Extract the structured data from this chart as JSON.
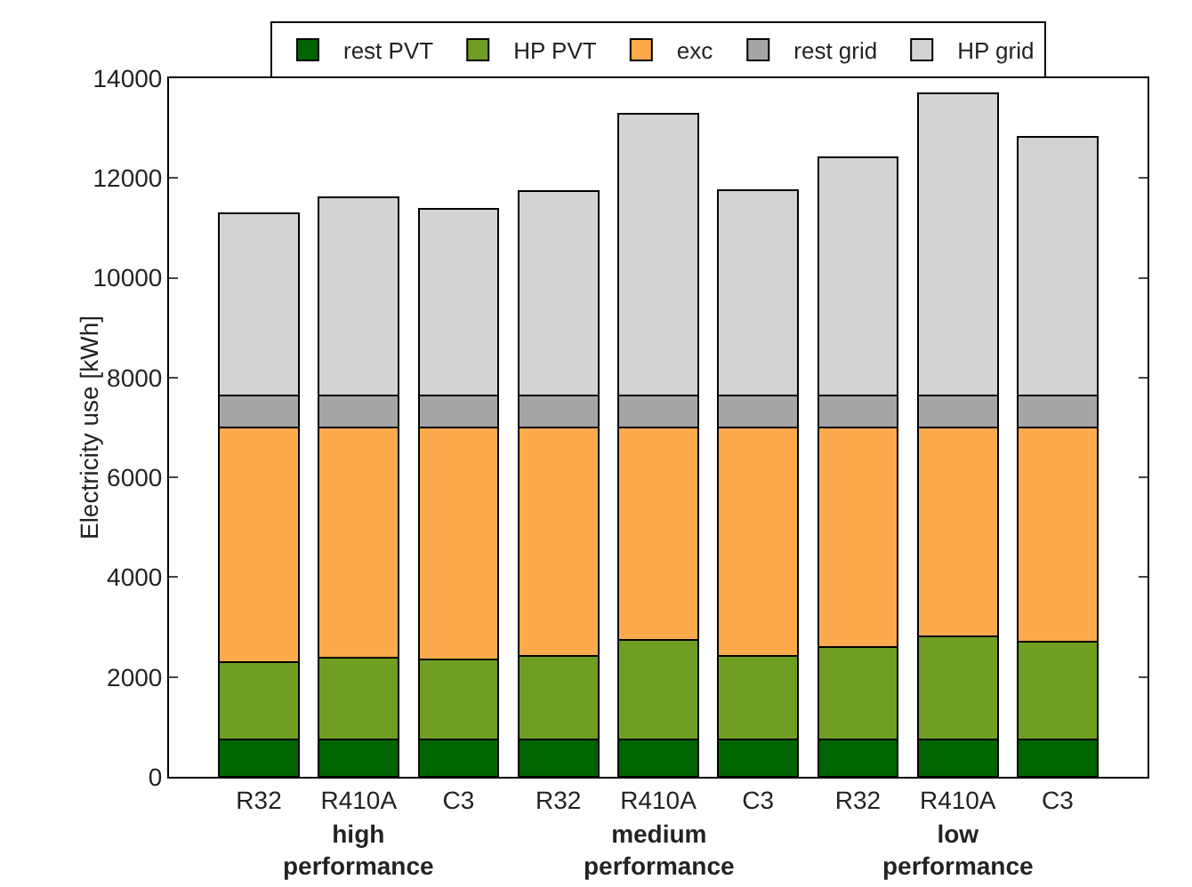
{
  "chart_data": {
    "type": "bar",
    "stacked": true,
    "ylabel": "Electricity use [kWh]",
    "categories": [
      "R32",
      "R410A",
      "C3",
      "R32",
      "R410A",
      "C3",
      "R32",
      "R410A",
      "C3"
    ],
    "series": [
      {
        "name": "rest PVT",
        "color": "#006400",
        "values": [
          750,
          750,
          750,
          750,
          750,
          750,
          750,
          750,
          750
        ]
      },
      {
        "name": "HP PVT",
        "color": "#6f9e22",
        "values": [
          1550,
          1630,
          1600,
          1670,
          2000,
          1670,
          1850,
          2070,
          1950
        ]
      },
      {
        "name": "exc",
        "color": "#fdaa4c",
        "values": [
          4700,
          4620,
          4650,
          4580,
          4250,
          4580,
          4400,
          4180,
          4300
        ]
      },
      {
        "name": "rest grid",
        "color": "#a5a5a5",
        "values": [
          650,
          650,
          650,
          650,
          650,
          650,
          650,
          650,
          650
        ]
      },
      {
        "name": "HP grid",
        "color": "#d3d3d3",
        "values": [
          3650,
          3970,
          3730,
          4080,
          5630,
          4110,
          4770,
          6050,
          5170
        ]
      }
    ],
    "ylim": [
      0,
      14000
    ],
    "yticks": [
      0,
      2000,
      4000,
      6000,
      8000,
      10000,
      12000,
      14000
    ],
    "grid": false,
    "legend": "top",
    "annotations": [
      "high\nperformance",
      "medium\nperformance",
      "low\nperformance"
    ]
  }
}
